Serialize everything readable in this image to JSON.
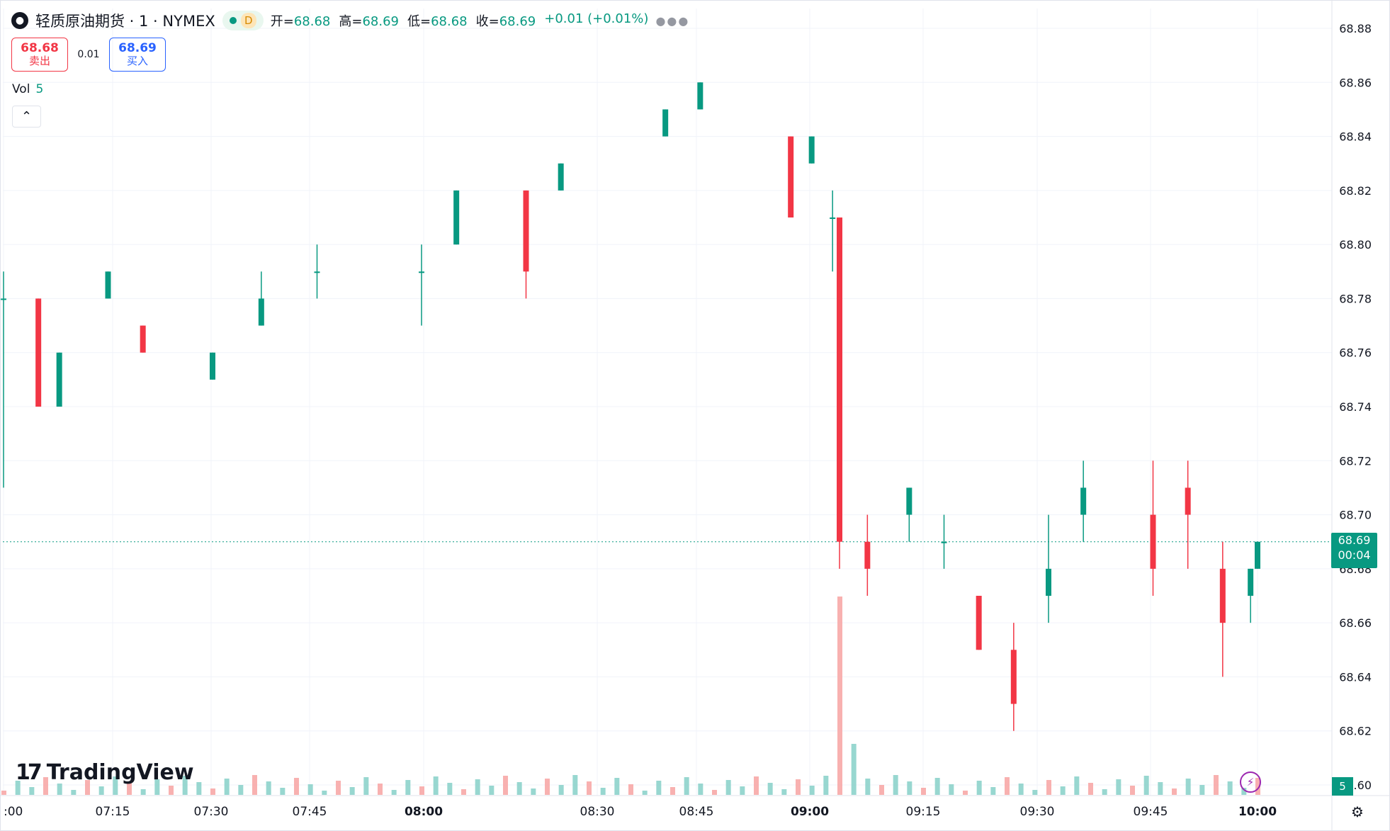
{
  "header": {
    "symbol": "轻质原油期货 · 1 · NYMEX",
    "symbol_icon": "drop-icon",
    "session_badge": "D",
    "ohlc": [
      {
        "label": "开=",
        "value": "68.68"
      },
      {
        "label": "高=",
        "value": "68.69"
      },
      {
        "label": "低=",
        "value": "68.68"
      },
      {
        "label": "收=",
        "value": "68.69"
      }
    ],
    "change": "+0.01 (+0.01%)",
    "more_icon": "ellipsis-icon"
  },
  "trade": {
    "sell_price": "68.68",
    "sell_label": "卖出",
    "spread": "0.01",
    "buy_price": "68.69",
    "buy_label": "买入"
  },
  "volume_legend": {
    "label": "Vol",
    "value": "5"
  },
  "collapse_icon": "chevron-up-icon",
  "branding": "TradingView",
  "last_price": {
    "price": "68.69",
    "countdown": "00:04"
  },
  "volume_tag": "5",
  "colors": {
    "up": "#089981",
    "down": "#f23645",
    "vol_up": "#8dd3cb",
    "vol_down": "#f7a9a7"
  },
  "chart_data": {
    "type": "candlestick",
    "x_axis": {
      "ticks": [
        ":00",
        "07:15",
        "07:30",
        "07:45",
        "08:00",
        "08:30",
        "08:45",
        "09:00",
        "09:15",
        "09:30",
        "09:45",
        "10:00"
      ],
      "bold_ticks": [
        "08:00",
        "09:00",
        "10:00"
      ]
    },
    "y_axis": {
      "ticks": [
        "68.88",
        "68.86",
        "68.84",
        "68.82",
        "68.80",
        "68.78",
        "68.76",
        "68.74",
        "68.72",
        "68.70",
        "68.68",
        "68.66",
        "68.64",
        "68.62",
        "68.60"
      ],
      "range": [
        68.6,
        68.88
      ],
      "position": "right"
    },
    "grid": true,
    "current_price_line": 68.69,
    "series_approx": [
      {
        "time": "07:00",
        "o": 68.78,
        "h": 68.79,
        "l": 68.71,
        "c": 68.78
      },
      {
        "time": "07:05",
        "o": 68.78,
        "h": 68.78,
        "l": 68.74,
        "c": 68.74
      },
      {
        "time": "07:08",
        "o": 68.74,
        "h": 68.76,
        "l": 68.74,
        "c": 68.76
      },
      {
        "time": "07:15",
        "o": 68.78,
        "h": 68.79,
        "l": 68.78,
        "c": 68.79
      },
      {
        "time": "07:20",
        "o": 68.77,
        "h": 68.77,
        "l": 68.76,
        "c": 68.76
      },
      {
        "time": "07:30",
        "o": 68.75,
        "h": 68.76,
        "l": 68.75,
        "c": 68.76
      },
      {
        "time": "07:37",
        "o": 68.77,
        "h": 68.79,
        "l": 68.77,
        "c": 68.78
      },
      {
        "time": "07:45",
        "o": 68.79,
        "h": 68.8,
        "l": 68.78,
        "c": 68.79
      },
      {
        "time": "08:00",
        "o": 68.79,
        "h": 68.8,
        "l": 68.77,
        "c": 68.79
      },
      {
        "time": "08:05",
        "o": 68.8,
        "h": 68.82,
        "l": 68.8,
        "c": 68.82
      },
      {
        "time": "08:15",
        "o": 68.82,
        "h": 68.82,
        "l": 68.78,
        "c": 68.79
      },
      {
        "time": "08:20",
        "o": 68.82,
        "h": 68.83,
        "l": 68.82,
        "c": 68.83
      },
      {
        "time": "08:35",
        "o": 68.84,
        "h": 68.85,
        "l": 68.84,
        "c": 68.85
      },
      {
        "time": "08:40",
        "o": 68.85,
        "h": 68.86,
        "l": 68.85,
        "c": 68.86
      },
      {
        "time": "08:53",
        "o": 68.84,
        "h": 68.84,
        "l": 68.81,
        "c": 68.81
      },
      {
        "time": "08:56",
        "o": 68.83,
        "h": 68.84,
        "l": 68.83,
        "c": 68.84
      },
      {
        "time": "08:59",
        "o": 68.81,
        "h": 68.82,
        "l": 68.79,
        "c": 68.81
      },
      {
        "time": "09:00",
        "o": 68.81,
        "h": 68.81,
        "l": 68.68,
        "c": 68.69
      },
      {
        "time": "09:04",
        "o": 68.69,
        "h": 68.7,
        "l": 68.67,
        "c": 68.68
      },
      {
        "time": "09:10",
        "o": 68.7,
        "h": 68.71,
        "l": 68.69,
        "c": 68.71
      },
      {
        "time": "09:15",
        "o": 68.69,
        "h": 68.7,
        "l": 68.68,
        "c": 68.69
      },
      {
        "time": "09:20",
        "o": 68.67,
        "h": 68.67,
        "l": 68.65,
        "c": 68.65
      },
      {
        "time": "09:25",
        "o": 68.65,
        "h": 68.66,
        "l": 68.62,
        "c": 68.63
      },
      {
        "time": "09:30",
        "o": 68.67,
        "h": 68.7,
        "l": 68.66,
        "c": 68.68
      },
      {
        "time": "09:35",
        "o": 68.7,
        "h": 68.72,
        "l": 68.69,
        "c": 68.71
      },
      {
        "time": "09:45",
        "o": 68.7,
        "h": 68.72,
        "l": 68.67,
        "c": 68.68
      },
      {
        "time": "09:50",
        "o": 68.71,
        "h": 68.72,
        "l": 68.68,
        "c": 68.7
      },
      {
        "time": "09:55",
        "o": 68.68,
        "h": 68.69,
        "l": 68.64,
        "c": 68.66
      },
      {
        "time": "09:59",
        "o": 68.67,
        "h": 68.68,
        "l": 68.66,
        "c": 68.68
      },
      {
        "time": "10:00",
        "o": 68.68,
        "h": 68.69,
        "l": 68.68,
        "c": 68.69
      }
    ],
    "volume_approx": {
      "max_bar": "09:00",
      "last": 5
    }
  }
}
